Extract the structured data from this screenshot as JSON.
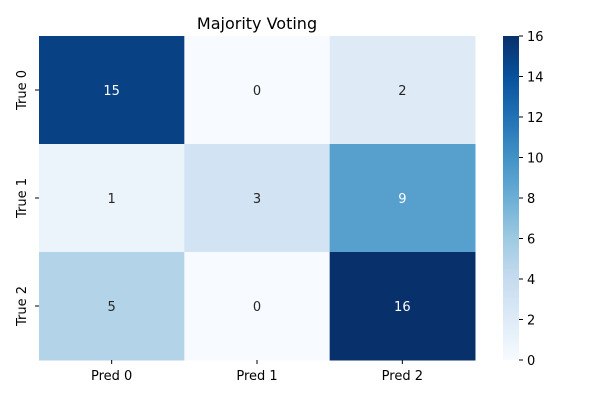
{
  "chart_data": {
    "type": "heatmap",
    "title": "Majority Voting",
    "x_labels": [
      "Pred 0",
      "Pred 1",
      "Pred 2"
    ],
    "y_labels": [
      "True 0",
      "True 1",
      "True 2"
    ],
    "values": [
      [
        15,
        0,
        2
      ],
      [
        1,
        3,
        9
      ],
      [
        5,
        0,
        16
      ]
    ],
    "colorbar": {
      "min": 0,
      "max": 16,
      "ticks": [
        0,
        2,
        4,
        6,
        8,
        10,
        12,
        14,
        16
      ]
    },
    "colormap": "Blues",
    "colors": {
      "low": "#f7fbff",
      "high": "#08306b",
      "text_light": "#ffffff",
      "text_dark": "#262626"
    }
  }
}
